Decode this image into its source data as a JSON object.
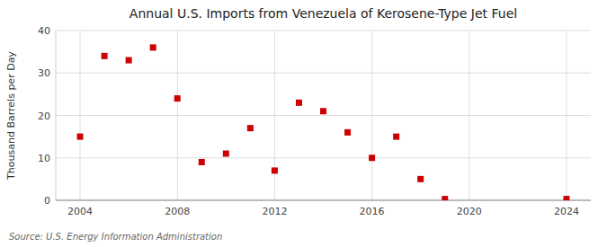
{
  "chart_data": {
    "type": "scatter",
    "title": "Annual U.S. Imports from Venezuela of Kerosene-Type Jet Fuel",
    "ylabel": "Thousand Barrels per Day",
    "source": "Source: U.S. Energy Information Administration",
    "x": [
      2004,
      2005,
      2006,
      2007,
      2008,
      2009,
      2010,
      2011,
      2012,
      2013,
      2014,
      2015,
      2016,
      2017,
      2018,
      2019,
      2024
    ],
    "values": [
      15,
      34,
      33,
      36,
      24,
      9,
      11,
      17,
      7,
      23,
      21,
      16,
      10,
      15,
      5,
      0.3,
      0.3
    ],
    "color": "#cc0000",
    "marker": "square",
    "xlim": [
      2003,
      2025
    ],
    "ylim": [
      0,
      40
    ],
    "xticks": [
      2004,
      2008,
      2012,
      2016,
      2020,
      2024
    ],
    "yticks": [
      0,
      10,
      20,
      30,
      40
    ],
    "grid": true
  }
}
